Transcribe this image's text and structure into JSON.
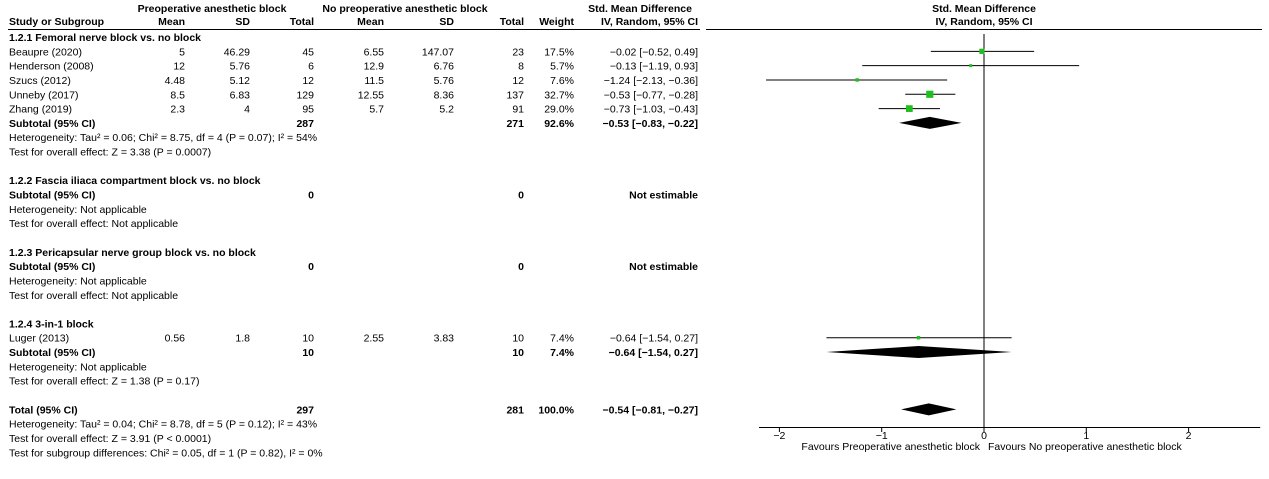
{
  "header": {
    "exp_group": "Preoperative anesthetic block",
    "ctrl_group": "No preoperative anesthetic block",
    "smd_title": "Std. Mean Difference",
    "col_study": "Study or Subgroup",
    "col_mean": "Mean",
    "col_sd": "SD",
    "col_total": "Total",
    "col_weight": "Weight",
    "col_method": "IV, Random, 95% CI",
    "plot_title": "Std. Mean Difference",
    "plot_method": "IV, Random, 95% CI"
  },
  "rows": [
    {
      "kind": "group",
      "label": "1.2.1 Femoral nerve block vs. no block"
    },
    {
      "kind": "study",
      "label": "Beaupre (2020)",
      "m1": "5",
      "sd1": "46.29",
      "n1": "45",
      "m2": "6.55",
      "sd2": "147.07",
      "n2": "23",
      "w": "17.5%",
      "ci": "−0.02 [−0.52, 0.49]"
    },
    {
      "kind": "study",
      "label": "Henderson (2008)",
      "m1": "12",
      "sd1": "5.76",
      "n1": "6",
      "m2": "12.9",
      "sd2": "6.76",
      "n2": "8",
      "w": "5.7%",
      "ci": "−0.13 [−1.19, 0.93]"
    },
    {
      "kind": "study",
      "label": "Szucs (2012)",
      "m1": "4.48",
      "sd1": "5.12",
      "n1": "12",
      "m2": "11.5",
      "sd2": "5.76",
      "n2": "12",
      "w": "7.6%",
      "ci": "−1.24 [−2.13, −0.36]"
    },
    {
      "kind": "study",
      "label": "Unneby (2017)",
      "m1": "8.5",
      "sd1": "6.83",
      "n1": "129",
      "m2": "12.55",
      "sd2": "8.36",
      "n2": "137",
      "w": "32.7%",
      "ci": "−0.53 [−0.77, −0.28]"
    },
    {
      "kind": "study",
      "label": "Zhang (2019)",
      "m1": "2.3",
      "sd1": "4",
      "n1": "95",
      "m2": "5.7",
      "sd2": "5.2",
      "n2": "91",
      "w": "29.0%",
      "ci": "−0.73 [−1.03, −0.43]"
    },
    {
      "kind": "subtotal",
      "label": "Subtotal (95% CI)",
      "n1": "287",
      "n2": "271",
      "w": "92.6%",
      "ci": "−0.53 [−0.83, −0.22]"
    },
    {
      "kind": "note",
      "label": "Heterogeneity: Tau² = 0.06; Chi² = 8.75, df = 4 (P = 0.07); I² = 54%"
    },
    {
      "kind": "note",
      "label": "Test for overall effect: Z = 3.38 (P = 0.0007)"
    },
    {
      "kind": "blank"
    },
    {
      "kind": "group",
      "label": "1.2.2 Fascia iliaca compartment block vs. no block"
    },
    {
      "kind": "subtotal",
      "label": "Subtotal (95% CI)",
      "n1": "0",
      "n2": "0",
      "ci": "Not estimable"
    },
    {
      "kind": "note",
      "label": "Heterogeneity: Not applicable"
    },
    {
      "kind": "note",
      "label": "Test for overall effect: Not applicable"
    },
    {
      "kind": "blank"
    },
    {
      "kind": "group",
      "label": "1.2.3 Pericapsular nerve group block vs. no block"
    },
    {
      "kind": "subtotal",
      "label": "Subtotal (95% CI)",
      "n1": "0",
      "n2": "0",
      "ci": "Not estimable"
    },
    {
      "kind": "note",
      "label": "Heterogeneity: Not applicable"
    },
    {
      "kind": "note",
      "label": "Test for overall effect: Not applicable"
    },
    {
      "kind": "blank"
    },
    {
      "kind": "group",
      "label": "1.2.4 3-in-1 block"
    },
    {
      "kind": "study",
      "label": "Luger (2013)",
      "m1": "0.56",
      "sd1": "1.8",
      "n1": "10",
      "m2": "2.55",
      "sd2": "3.83",
      "n2": "10",
      "w": "7.4%",
      "ci": "−0.64 [−1.54, 0.27]"
    },
    {
      "kind": "subtotal",
      "label": "Subtotal (95% CI)",
      "n1": "10",
      "n2": "10",
      "w": "7.4%",
      "ci": "−0.64 [−1.54, 0.27]"
    },
    {
      "kind": "note",
      "label": "Heterogeneity: Not applicable"
    },
    {
      "kind": "note",
      "label": "Test for overall effect: Z = 1.38 (P = 0.17)"
    },
    {
      "kind": "blank"
    },
    {
      "kind": "subtotal",
      "label": "Total (95% CI)",
      "n1": "297",
      "n2": "281",
      "w": "100.0%",
      "ci": "−0.54 [−0.81, −0.27]"
    },
    {
      "kind": "note",
      "label": "Heterogeneity: Tau² = 0.04; Chi² = 8.78, df = 5 (P = 0.12); I² = 43%"
    },
    {
      "kind": "note",
      "label": "Test for overall effect: Z = 3.91 (P < 0.0001)"
    },
    {
      "kind": "note",
      "label": "Test for subgroup differences: Chi² = 0.05, df = 1 (P = 0.82), I² = 0%"
    }
  ],
  "axis_labels": {
    "favours_left": "Favours Preoperative anesthetic block",
    "favours_right": "Favours No preoperative anesthetic block"
  },
  "colors": {
    "point": "#1fbf1f",
    "line": "#000000"
  },
  "chart_data": {
    "type": "forest",
    "x_axis": {
      "min": -2.2,
      "max": 2.7,
      "ticks": [
        -2,
        -1,
        0,
        1,
        2
      ],
      "tick_labels": [
        "−2",
        "−1",
        "0",
        "1",
        "2"
      ],
      "reference": 0
    },
    "studies": [
      {
        "name": "Beaupre (2020)",
        "estimate": -0.02,
        "lower": -0.52,
        "upper": 0.49,
        "weight": 17.5
      },
      {
        "name": "Henderson (2008)",
        "estimate": -0.13,
        "lower": -1.19,
        "upper": 0.93,
        "weight": 5.7
      },
      {
        "name": "Szucs (2012)",
        "estimate": -1.24,
        "lower": -2.13,
        "upper": -0.36,
        "weight": 7.6
      },
      {
        "name": "Unneby (2017)",
        "estimate": -0.53,
        "lower": -0.77,
        "upper": -0.28,
        "weight": 32.7
      },
      {
        "name": "Zhang (2019)",
        "estimate": -0.73,
        "lower": -1.03,
        "upper": -0.43,
        "weight": 29.0
      },
      {
        "name": "Luger (2013)",
        "estimate": -0.64,
        "lower": -1.54,
        "upper": 0.27,
        "weight": 7.4
      }
    ],
    "summaries": [
      {
        "name": "Subtotal 1.2.1",
        "estimate": -0.53,
        "lower": -0.83,
        "upper": -0.22
      },
      {
        "name": "Subtotal 1.2.4",
        "estimate": -0.64,
        "lower": -1.54,
        "upper": 0.27
      },
      {
        "name": "Total",
        "estimate": -0.54,
        "lower": -0.81,
        "upper": -0.27
      }
    ]
  }
}
